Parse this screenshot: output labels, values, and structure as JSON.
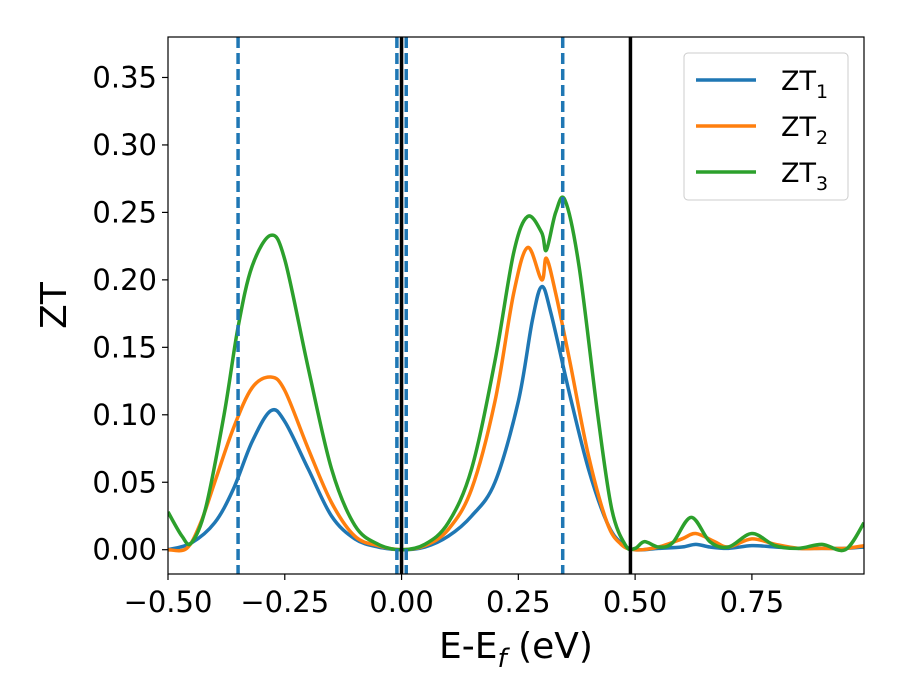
{
  "chart_data": {
    "type": "line",
    "xlabel": {
      "main": "E-E",
      "sub": "f",
      "tail": " (eV)"
    },
    "ylabel": "ZT",
    "xlim": [
      -0.5,
      0.99
    ],
    "ylim": [
      -0.018,
      0.38
    ],
    "xticks": [
      -0.5,
      -0.25,
      0.0,
      0.25,
      0.5,
      0.75
    ],
    "xtick_labels": [
      "−0.50",
      "−0.25",
      "0.00",
      "0.25",
      "0.50",
      "0.75"
    ],
    "yticks": [
      0.0,
      0.05,
      0.1,
      0.15,
      0.2,
      0.25,
      0.3,
      0.35
    ],
    "ytick_labels": [
      "0.00",
      "0.05",
      "0.10",
      "0.15",
      "0.20",
      "0.25",
      "0.30",
      "0.35"
    ],
    "grid": false,
    "legend_position": "top-right",
    "vlines_dashed": {
      "color": "#1f77b4",
      "x": [
        -0.35,
        -0.01,
        0.01,
        0.345
      ]
    },
    "vlines_solid": {
      "color": "#000000",
      "x": [
        0.0,
        0.49
      ]
    },
    "series": [
      {
        "name": "ZT",
        "name_sub": "1",
        "color": "#1f77b4",
        "x": [
          -0.5,
          -0.45,
          -0.4,
          -0.36,
          -0.32,
          -0.28,
          -0.25,
          -0.2,
          -0.15,
          -0.1,
          -0.05,
          0.0,
          0.05,
          0.1,
          0.15,
          0.2,
          0.25,
          0.28,
          0.3,
          0.32,
          0.36,
          0.4,
          0.44,
          0.47,
          0.5,
          0.55,
          0.6,
          0.63,
          0.66,
          0.7,
          0.75,
          0.8,
          0.85,
          0.9,
          0.95,
          0.99
        ],
        "y": [
          0.0,
          0.005,
          0.02,
          0.045,
          0.08,
          0.103,
          0.095,
          0.06,
          0.025,
          0.008,
          0.002,
          0.0,
          0.002,
          0.01,
          0.025,
          0.05,
          0.11,
          0.17,
          0.195,
          0.175,
          0.115,
          0.06,
          0.02,
          0.005,
          0.0,
          0.001,
          0.002,
          0.004,
          0.002,
          0.001,
          0.003,
          0.002,
          0.001,
          0.001,
          0.001,
          0.002
        ]
      },
      {
        "name": "ZT",
        "name_sub": "2",
        "color": "#ff7f0e",
        "x": [
          -0.5,
          -0.46,
          -0.43,
          -0.4,
          -0.36,
          -0.32,
          -0.28,
          -0.25,
          -0.2,
          -0.15,
          -0.1,
          -0.05,
          0.0,
          0.05,
          0.1,
          0.15,
          0.2,
          0.24,
          0.27,
          0.3,
          0.31,
          0.33,
          0.36,
          0.4,
          0.44,
          0.47,
          0.5,
          0.55,
          0.6,
          0.63,
          0.67,
          0.7,
          0.75,
          0.8,
          0.85,
          0.9,
          0.95,
          0.99
        ],
        "y": [
          0.0,
          0.001,
          0.02,
          0.05,
          0.09,
          0.12,
          0.128,
          0.118,
          0.075,
          0.035,
          0.01,
          0.003,
          0.0,
          0.003,
          0.015,
          0.045,
          0.11,
          0.19,
          0.224,
          0.2,
          0.216,
          0.19,
          0.14,
          0.07,
          0.02,
          0.004,
          0.0,
          0.002,
          0.008,
          0.012,
          0.006,
          0.002,
          0.008,
          0.004,
          0.001,
          0.001,
          0.001,
          0.003
        ]
      },
      {
        "name": "ZT",
        "name_sub": "3",
        "color": "#2ca02c",
        "x": [
          -0.5,
          -0.47,
          -0.45,
          -0.42,
          -0.38,
          -0.35,
          -0.32,
          -0.28,
          -0.25,
          -0.2,
          -0.15,
          -0.1,
          -0.05,
          0.0,
          0.05,
          0.1,
          0.15,
          0.2,
          0.24,
          0.27,
          0.3,
          0.31,
          0.33,
          0.35,
          0.38,
          0.42,
          0.45,
          0.48,
          0.5,
          0.52,
          0.55,
          0.58,
          0.62,
          0.66,
          0.7,
          0.75,
          0.8,
          0.85,
          0.9,
          0.95,
          0.99
        ],
        "y": [
          0.028,
          0.01,
          0.005,
          0.03,
          0.1,
          0.165,
          0.21,
          0.233,
          0.215,
          0.135,
          0.06,
          0.018,
          0.004,
          0.0,
          0.004,
          0.02,
          0.06,
          0.14,
          0.22,
          0.247,
          0.235,
          0.222,
          0.25,
          0.259,
          0.21,
          0.1,
          0.03,
          0.003,
          0.001,
          0.006,
          0.002,
          0.005,
          0.024,
          0.006,
          0.002,
          0.012,
          0.003,
          0.001,
          0.004,
          0.0,
          0.02
        ]
      }
    ]
  }
}
